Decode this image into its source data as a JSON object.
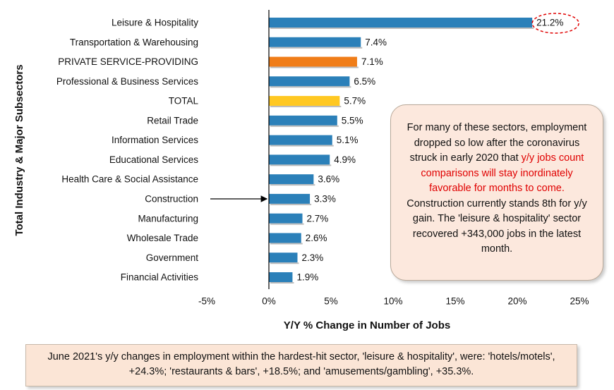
{
  "chart_data": {
    "type": "barh",
    "y_axis_label": "Total Industry & Major Subsectors",
    "x_axis_label": "Y/Y % Change in Number of Jobs",
    "categories": [
      "Leisure & Hospitality",
      "Transportation & Warehousing",
      "PRIVATE SERVICE-PROVIDING",
      "Professional & Business Services",
      "TOTAL",
      "Retail Trade",
      "Information Services",
      "Educational Services",
      "Health Care & Social Assistance",
      "Construction",
      "Manufacturing",
      "Wholesale Trade",
      "Government",
      "Financial Activities"
    ],
    "values": [
      21.2,
      7.4,
      7.1,
      6.5,
      5.7,
      5.5,
      5.1,
      4.9,
      3.6,
      3.3,
      2.7,
      2.6,
      2.3,
      1.9
    ],
    "value_labels": [
      "21.2%",
      "7.4%",
      "7.1%",
      "6.5%",
      "5.7%",
      "5.5%",
      "5.1%",
      "4.9%",
      "3.6%",
      "3.3%",
      "2.7%",
      "2.6%",
      "2.3%",
      "1.9%"
    ],
    "colors": [
      "#2b80b9",
      "#2b80b9",
      "#f07d18",
      "#2b80b9",
      "#ffc822",
      "#2b80b9",
      "#2b80b9",
      "#2b80b9",
      "#2b80b9",
      "#2b80b9",
      "#2b80b9",
      "#2b80b9",
      "#2b80b9",
      "#2b80b9"
    ],
    "xlim": [
      -5,
      25
    ],
    "xticks": [
      {
        "value": -5,
        "label": "-5%"
      },
      {
        "value": 0,
        "label": "0%"
      },
      {
        "value": 5,
        "label": "5%"
      },
      {
        "value": 10,
        "label": "10%"
      },
      {
        "value": 15,
        "label": "15%"
      },
      {
        "value": 20,
        "label": "20%"
      },
      {
        "value": 25,
        "label": "25%"
      }
    ],
    "annotation": [
      "For many of these sectors, employment dropped so low after the coronavirus struck in early 2020 that",
      "y/y jobs count comparisons will stay inordinately favorable for months to come.",
      "Construction currently stands 8th for y/y gain. The 'leisure & hospitality' sector recovered +343,000 jobs in the latest month."
    ],
    "footnote": "June 2021's y/y changes in employment within the hardest-hit sector, 'leisure & hospitality', were: 'hotels/motels', +24.3%; 'restaurants & bars', +18.5%; and 'amusements/gambling', +35.3%."
  }
}
